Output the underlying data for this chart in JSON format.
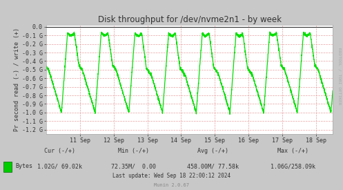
{
  "title": "Disk throughput for /dev/nvme2n1 - by week",
  "ylabel": "Pr second read (-) / write (+)",
  "bg_color": "#c8c8c8",
  "plot_bg_color": "#ffffff",
  "line_color": "#00e000",
  "zero_line_color": "#202020",
  "grid_color": "#e8a0a0",
  "text_color": "#333333",
  "watermark_color": "#aaaaaa",
  "ylim_min": -1250000000.0,
  "ylim_max": 25000000.0,
  "yticks": [
    0.0,
    -100000000.0,
    -200000000.0,
    -300000000.0,
    -400000000.0,
    -500000000.0,
    -600000000.0,
    -700000000.0,
    -800000000.0,
    -900000000.0,
    -1000000000.0,
    -1100000000.0,
    -1200000000.0
  ],
  "ytick_labels": [
    "0.0",
    "-0.1 G",
    "-0.2 G",
    "-0.3 G",
    "-0.4 G",
    "-0.5 G",
    "-0.6 G",
    "-0.7 G",
    "-0.8 G",
    "-0.9 G",
    "-1.0 G",
    "-1.1 G",
    "-1.2 G"
  ],
  "xtick_labels": [
    "11 Sep",
    "12 Sep",
    "13 Sep",
    "14 Sep",
    "15 Sep",
    "16 Sep",
    "17 Sep",
    "18 Sep"
  ],
  "xtick_pos": [
    1.0,
    2.0,
    3.0,
    4.0,
    5.0,
    6.0,
    7.0,
    8.0
  ],
  "xlim_min": 0.0,
  "xlim_max": 8.5,
  "legend_label": "Bytes",
  "legend_color": "#00cc00",
  "watermark": "RRDTOOL / TOBI OETIKER",
  "footer_munin": "Munin 2.0.67"
}
